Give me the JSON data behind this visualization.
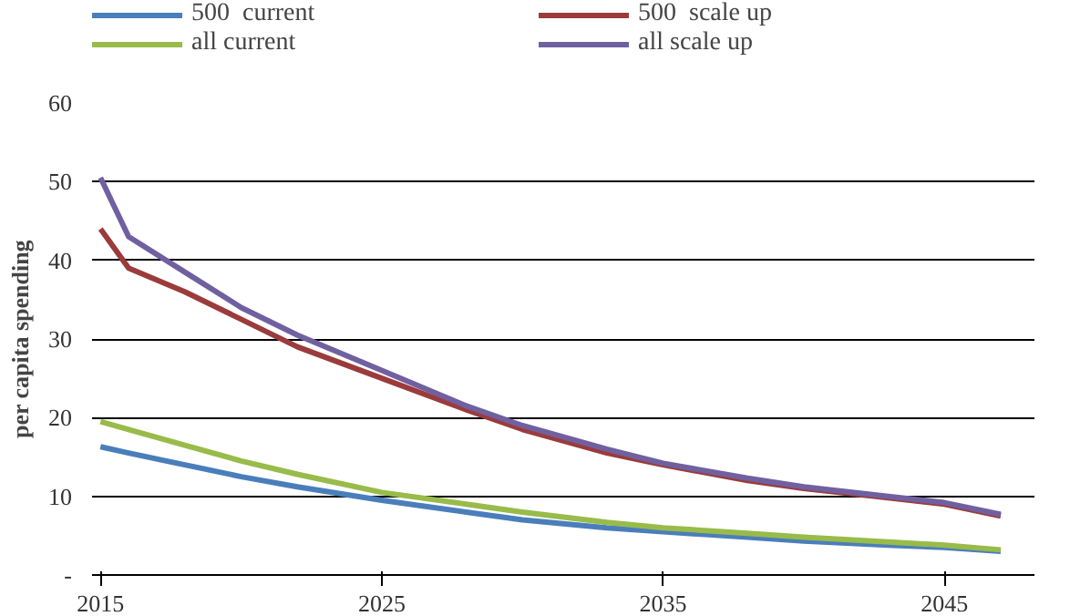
{
  "chart_data": {
    "type": "line",
    "ylabel": "per capita spending",
    "x": [
      2015,
      2016,
      2018,
      2020,
      2022,
      2025,
      2028,
      2030,
      2033,
      2035,
      2038,
      2040,
      2043,
      2045,
      2047
    ],
    "series": [
      {
        "name": "500  current",
        "color": "#4a7ebb",
        "values": [
          16.3,
          15.5,
          14,
          12.5,
          11.2,
          9.5,
          8,
          7,
          6,
          5.5,
          4.8,
          4.3,
          3.8,
          3.5,
          3
        ]
      },
      {
        "name": "500  scale up",
        "color": "#9b3b3b",
        "values": [
          44,
          39,
          36,
          32.5,
          29,
          25,
          21,
          18.5,
          15.5,
          14,
          12,
          11,
          9.8,
          9,
          7.5
        ]
      },
      {
        "name": "all current",
        "color": "#98bb4a",
        "values": [
          19.5,
          18.5,
          16.5,
          14.5,
          12.8,
          10.5,
          9,
          8,
          6.7,
          6,
          5.3,
          4.8,
          4.2,
          3.8,
          3.2
        ]
      },
      {
        "name": "all scale up",
        "color": "#7060a0",
        "values": [
          50.5,
          43,
          38.5,
          34,
          30.5,
          26,
          21.5,
          19,
          16,
          14.2,
          12.3,
          11.2,
          10,
          9.2,
          7.7
        ]
      }
    ],
    "xlim": [
      2014.7,
      2048.2
    ],
    "xticks": [
      2015,
      2025,
      2035,
      2045
    ],
    "ylim": [
      0,
      60
    ],
    "yticks": [
      {
        "value": 0,
        "label": "-"
      },
      10,
      20,
      30,
      40,
      50,
      60
    ],
    "grid": "y",
    "legend": "top",
    "marker": "none",
    "line_style": "solid"
  }
}
